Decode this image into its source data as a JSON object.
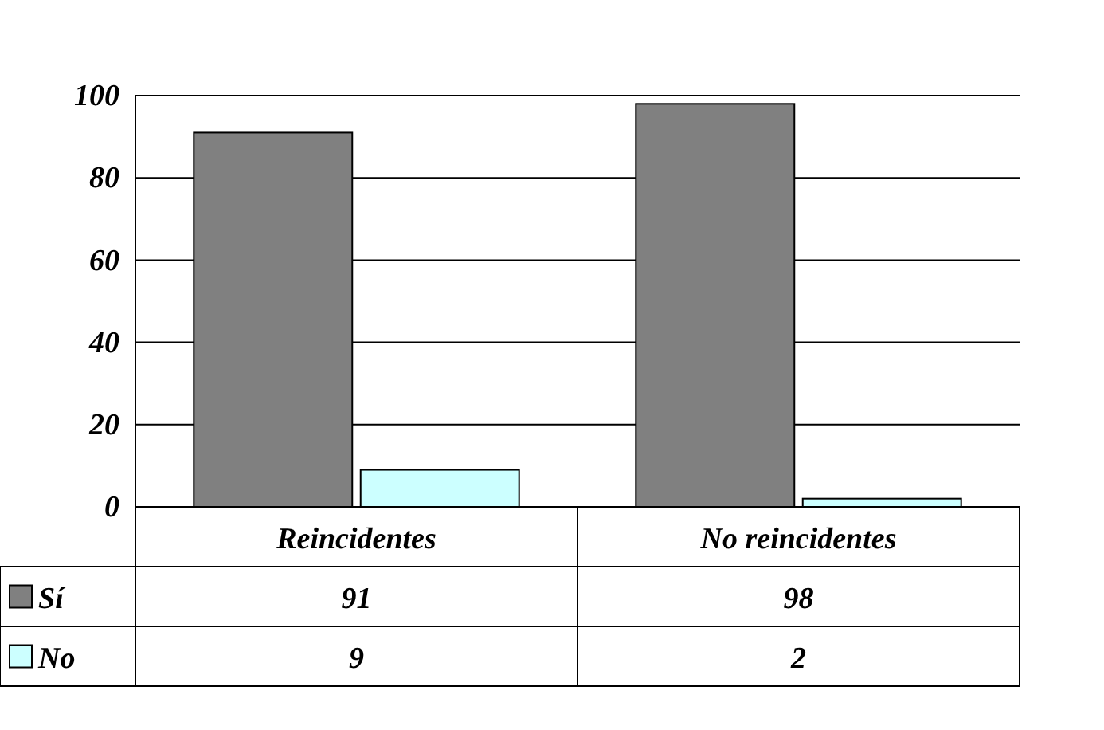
{
  "chart_data": {
    "type": "bar",
    "categories": [
      "Reincidentes",
      "No reincidentes"
    ],
    "series": [
      {
        "name": "Sí",
        "color": "#808080",
        "values": [
          91,
          98
        ]
      },
      {
        "name": "No",
        "color": "#ccffff",
        "values": [
          9,
          2
        ]
      }
    ],
    "ylim": [
      0,
      100
    ],
    "yticks": [
      0,
      20,
      40,
      60,
      80,
      100
    ],
    "grid": "y",
    "legend": "bottom",
    "data_labels": true
  }
}
